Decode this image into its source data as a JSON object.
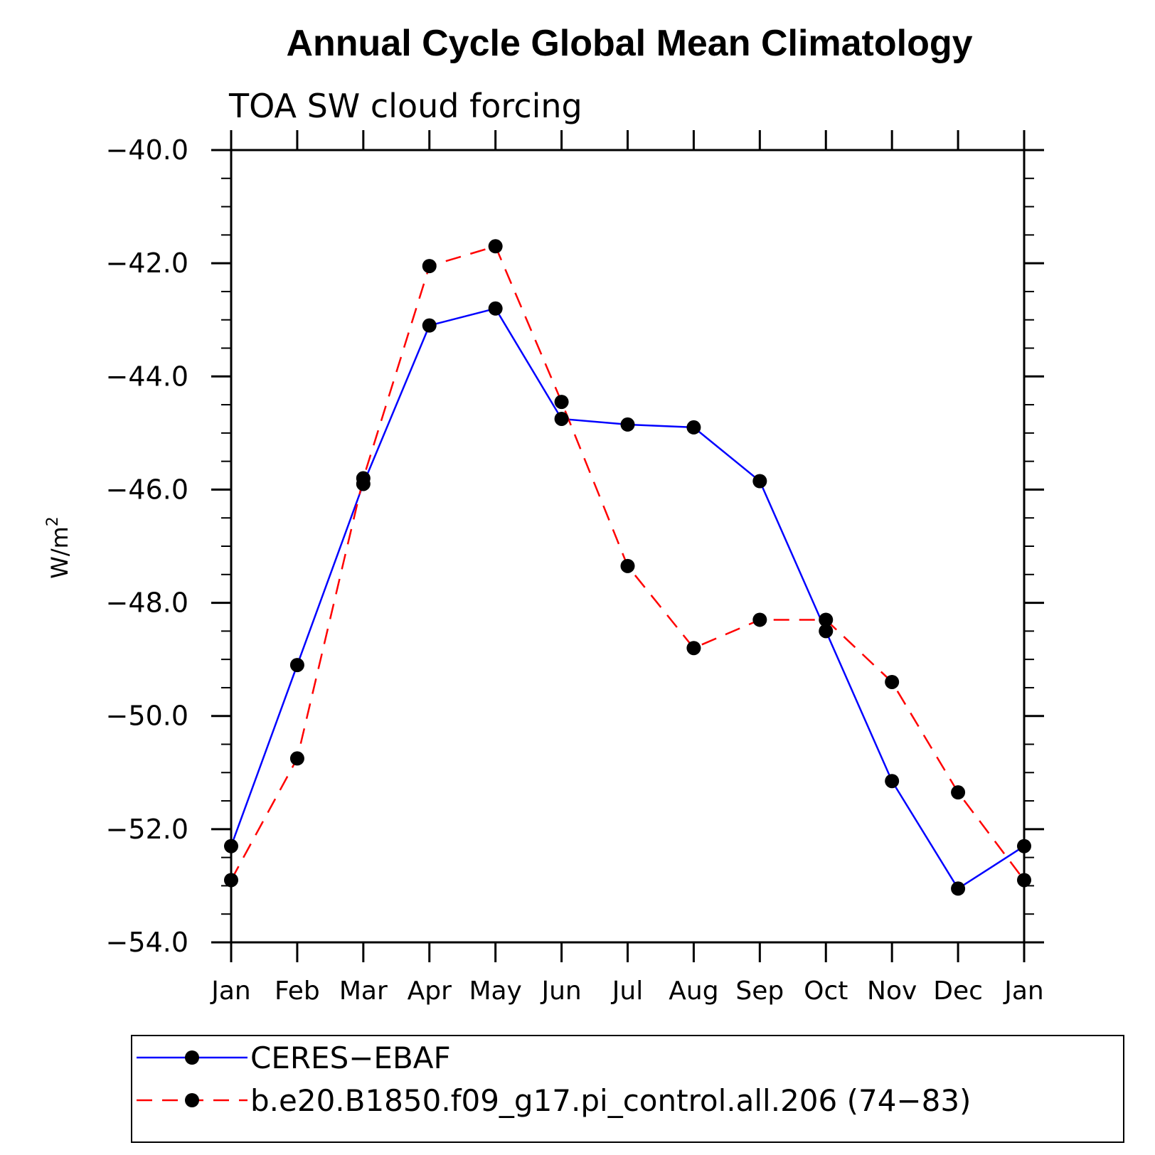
{
  "chart_data": {
    "type": "line",
    "title": "Annual Cycle Global Mean Climatology",
    "subtitle": "TOA SW cloud forcing",
    "ylabel": "W/m",
    "ylabel_sup": "2",
    "xlabel": "",
    "categories": [
      "Jan",
      "Feb",
      "Mar",
      "Apr",
      "May",
      "Jun",
      "Jul",
      "Aug",
      "Sep",
      "Oct",
      "Nov",
      "Dec",
      "Jan"
    ],
    "ylim": [
      -54.0,
      -40.0
    ],
    "yticks": [
      -40.0,
      -42.0,
      -44.0,
      -46.0,
      -48.0,
      -50.0,
      -52.0,
      -54.0
    ],
    "ytick_labels": [
      "−40.0",
      "−42.0",
      "−44.0",
      "−46.0",
      "−48.0",
      "−50.0",
      "−52.0",
      "−54.0"
    ],
    "yminor_step": 0.5,
    "grid": false,
    "series": [
      {
        "name": "CERES−EBAF",
        "color": "#0000ff",
        "dash": "solid",
        "values": [
          -52.3,
          -49.1,
          -45.9,
          -43.1,
          -42.8,
          -44.75,
          -44.85,
          -44.9,
          -45.85,
          -48.5,
          -51.15,
          -53.05,
          -52.3
        ]
      },
      {
        "name": "b.e20.B1850.f09_g17.pi_control.all.206 (74−83)",
        "color": "#ff0000",
        "dash": "dashed",
        "values": [
          -52.9,
          -50.75,
          -45.8,
          -42.05,
          -41.7,
          -44.45,
          -47.35,
          -48.8,
          -48.3,
          -48.3,
          -49.4,
          -51.35,
          -52.9
        ]
      }
    ],
    "legend_position": "bottom"
  }
}
